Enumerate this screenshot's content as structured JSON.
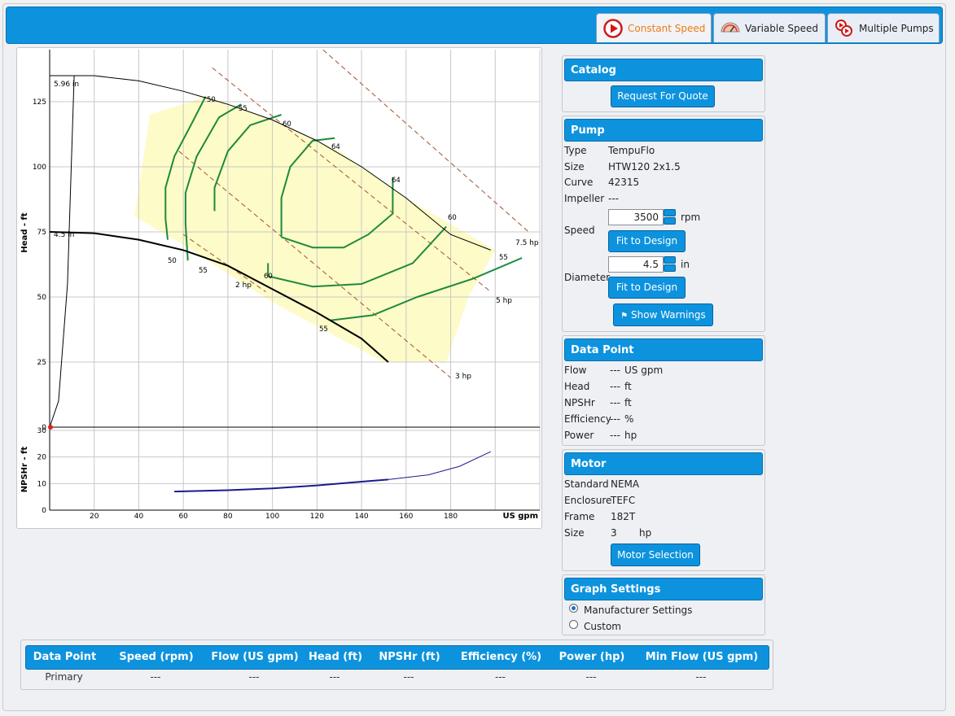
{
  "tabs": [
    {
      "label": "Constant Speed",
      "icon": "play-circle-icon",
      "active": true
    },
    {
      "label": "Variable Speed",
      "icon": "speed-gauge-icon",
      "active": false
    },
    {
      "label": "Multiple Pumps",
      "icon": "multiple-pumps-icon",
      "active": false
    }
  ],
  "chart_data": {
    "type": "line",
    "xlabel": "US gpm",
    "ylabel": "Head - ft",
    "ylabel2": "NPSHr - ft",
    "xlim": [
      0,
      220
    ],
    "ylim": [
      0,
      145
    ],
    "ylim2": [
      0,
      30
    ],
    "xticks": [
      "20",
      "40",
      "60",
      "80",
      "100",
      "120",
      "140",
      "160",
      "180"
    ],
    "yticks": [
      "0",
      "25",
      "50",
      "75",
      "100",
      "125"
    ],
    "yticks2": [
      "0",
      "10",
      "20",
      "30"
    ],
    "grid": true,
    "colors": {
      "impeller": "#000000",
      "efficiency": "#1d8a3c",
      "power": "#a0522d",
      "region": "#fdfbc8",
      "npsh": "#1b1b8c"
    },
    "impeller_curves": [
      {
        "label": "5.96 in",
        "points": [
          [
            0,
            135
          ],
          [
            20,
            135
          ],
          [
            40,
            133
          ],
          [
            60,
            129
          ],
          [
            80,
            124
          ],
          [
            100,
            118
          ],
          [
            120,
            110
          ],
          [
            140,
            100
          ],
          [
            160,
            88
          ],
          [
            180,
            74
          ],
          [
            198,
            68
          ]
        ]
      },
      {
        "label": "4.5 in",
        "points": [
          [
            0,
            75
          ],
          [
            20,
            74.5
          ],
          [
            40,
            72
          ],
          [
            60,
            68
          ],
          [
            80,
            62
          ],
          [
            100,
            53
          ],
          [
            120,
            44
          ],
          [
            140,
            34
          ],
          [
            152,
            25
          ]
        ]
      }
    ],
    "system_curve": [
      [
        0,
        0
      ],
      [
        4,
        10
      ],
      [
        8,
        55
      ],
      [
        11,
        135
      ]
    ],
    "power_lines": [
      {
        "label": "2 hp",
        "points": [
          [
            60,
            74
          ],
          [
            97,
            52
          ]
        ]
      },
      {
        "label": "3 hp",
        "points": [
          [
            58,
            106
          ],
          [
            180,
            19
          ]
        ]
      },
      {
        "label": "5 hp",
        "points": [
          [
            73,
            138
          ],
          [
            198,
            52
          ]
        ]
      },
      {
        "label": "7.5 hp",
        "points": [
          [
            120,
            147
          ],
          [
            215,
            75
          ]
        ]
      }
    ],
    "efficiency_curves": [
      {
        "label": "50",
        "points": [
          [
            53,
            72
          ],
          [
            52,
            80
          ],
          [
            52,
            92
          ],
          [
            56,
            104
          ],
          [
            64,
            117
          ],
          [
            70,
            127
          ]
        ]
      },
      {
        "label": "55",
        "points": [
          [
            62,
            64
          ],
          [
            61,
            78
          ],
          [
            61,
            90
          ],
          [
            66,
            104
          ],
          [
            76,
            119
          ],
          [
            86,
            124
          ]
        ]
      },
      {
        "label": "60",
        "points": [
          [
            98,
            58
          ],
          [
            98,
            63
          ]
        ]
      },
      {
        "label": "60",
        "points": [
          [
            74,
            83
          ],
          [
            74,
            92
          ],
          [
            80,
            106
          ],
          [
            90,
            116
          ],
          [
            104,
            120
          ]
        ]
      },
      {
        "label": "64",
        "points": [
          [
            104,
            73
          ],
          [
            104,
            88
          ],
          [
            108,
            100
          ],
          [
            118,
            110
          ],
          [
            128,
            111
          ]
        ]
      },
      {
        "label": "64",
        "points": [
          [
            104,
            73
          ],
          [
            118,
            69
          ],
          [
            132,
            69
          ],
          [
            143,
            74
          ],
          [
            154,
            82
          ],
          [
            154,
            96
          ]
        ]
      },
      {
        "label": "60",
        "points": [
          [
            98,
            58
          ],
          [
            118,
            54
          ],
          [
            140,
            55
          ],
          [
            163,
            63
          ],
          [
            178,
            77
          ]
        ]
      },
      {
        "label": "55",
        "points": [
          [
            126,
            41
          ],
          [
            145,
            43
          ],
          [
            165,
            50
          ],
          [
            190,
            57
          ],
          [
            212,
            65
          ]
        ]
      }
    ],
    "efficiency_labels": [
      "50",
      "55",
      "60",
      "64",
      "64",
      "60",
      "55",
      "50",
      "55",
      "60",
      "55"
    ],
    "npshr_curve": [
      [
        56,
        7
      ],
      [
        80,
        7.5
      ],
      [
        100,
        8.2
      ],
      [
        120,
        9.3
      ],
      [
        140,
        10.7
      ],
      [
        152,
        11.5
      ],
      [
        170,
        13.3
      ],
      [
        184,
        16.5
      ],
      [
        198,
        22
      ]
    ],
    "annotations": [
      "5.96 in",
      "4.5 in",
      "2 hp",
      "3 hp",
      "5 hp",
      "7.5 hp"
    ]
  },
  "catalog": {
    "title": "Catalog",
    "button": "Request For Quote"
  },
  "pump": {
    "title": "Pump",
    "type_label": "Type",
    "type_value": "TempuFlo",
    "size_label": "Size",
    "size_value": "HTW120 2x1.5",
    "curve_label": "Curve",
    "curve_value": "42315",
    "impeller_label": "Impeller",
    "impeller_value": "---",
    "speed_label": "Speed",
    "speed_value": "3500",
    "speed_unit": "rpm",
    "fit_button": "Fit to Design",
    "diameter_label": "Diameter",
    "diameter_value": "4.5",
    "diameter_unit": "in",
    "warnings_button": "Show Warnings"
  },
  "data_point": {
    "title": "Data Point",
    "rows": [
      {
        "label": "Flow",
        "value": "---",
        "unit": "US gpm"
      },
      {
        "label": "Head",
        "value": "---",
        "unit": "ft"
      },
      {
        "label": "NPSHr",
        "value": "---",
        "unit": "ft"
      },
      {
        "label": "Efficiency",
        "value": "---",
        "unit": "%"
      },
      {
        "label": "Power",
        "value": "---",
        "unit": "hp"
      }
    ]
  },
  "motor": {
    "title": "Motor",
    "standard_label": "Standard",
    "standard_value": "NEMA",
    "enclosure_label": "Enclosure",
    "enclosure_value": "TEFC",
    "frame_label": "Frame",
    "frame_value": "182T",
    "size_label": "Size",
    "size_value": "3",
    "size_unit": "hp",
    "button": "Motor Selection"
  },
  "graph_settings": {
    "title": "Graph Settings",
    "option1": "Manufacturer Settings",
    "option2": "Custom",
    "selected": "option1"
  },
  "results_table": {
    "headers": [
      "Data Point",
      "Speed (rpm)",
      "Flow (US gpm)",
      "Head (ft)",
      "NPSHr (ft)",
      "Efficiency (%)",
      "Power (hp)",
      "Min Flow (US gpm)"
    ],
    "rows": [
      [
        "Primary",
        "---",
        "---",
        "---",
        "---",
        "---",
        "---",
        "---"
      ]
    ]
  }
}
